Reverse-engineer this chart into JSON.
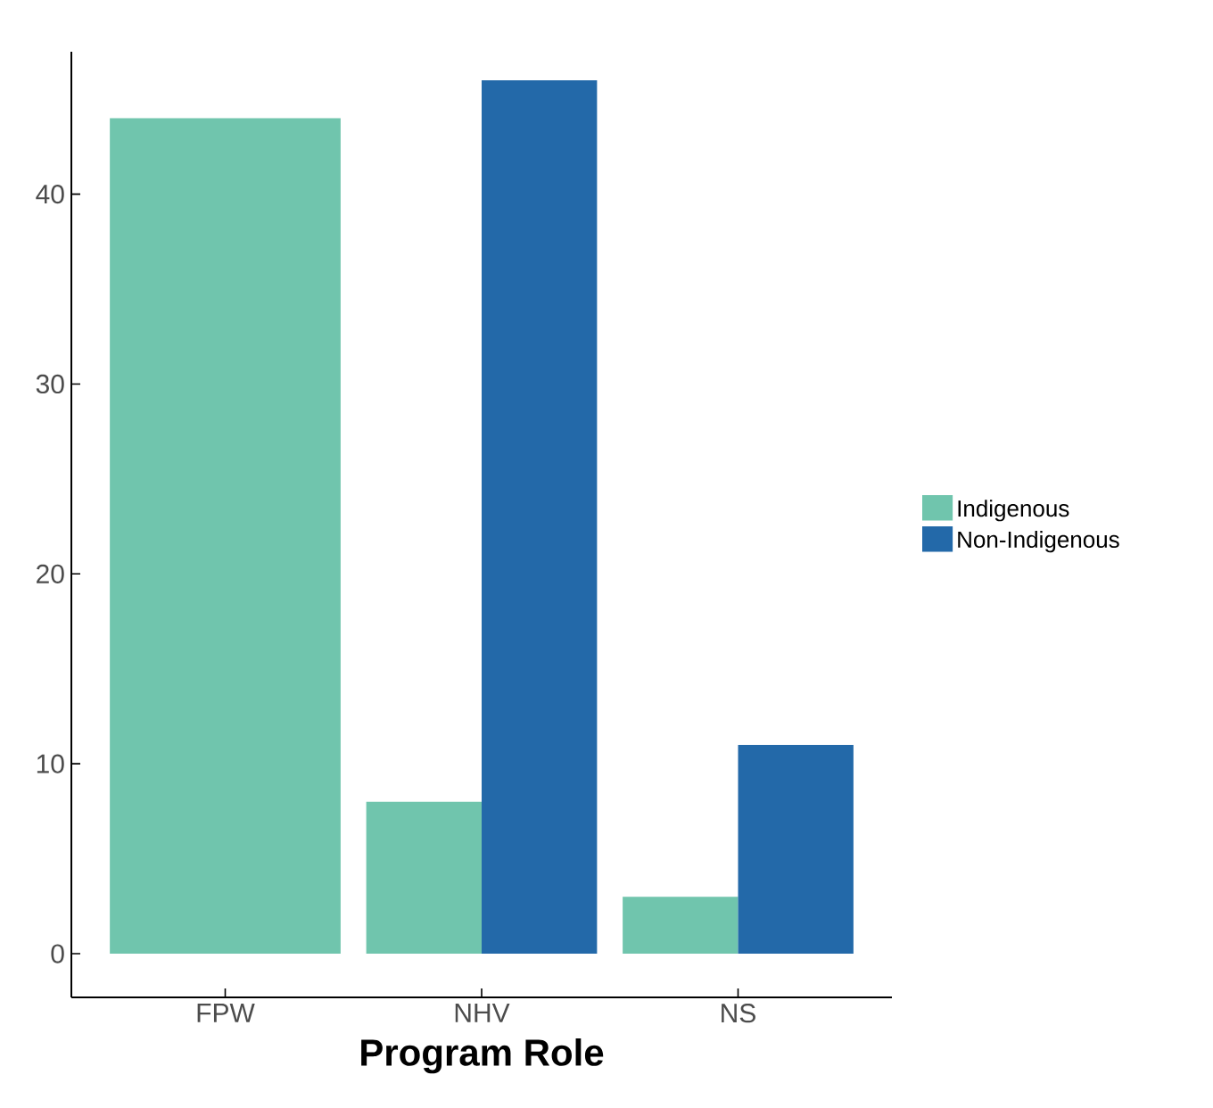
{
  "chart_data": {
    "type": "bar",
    "xlabel": "Program Role",
    "categories": [
      "FPW",
      "NHV",
      "NS"
    ],
    "series": [
      {
        "name": "Indigenous",
        "color": "#70c5ad",
        "values": [
          44,
          8,
          3
        ]
      },
      {
        "name": "Non-Indigenous",
        "color": "#2369a9",
        "values": [
          null,
          46,
          11
        ]
      }
    ],
    "ylim": [
      -2.3,
      47.5
    ],
    "yticks": [
      0,
      10,
      20,
      30,
      40
    ],
    "grid": false,
    "legend": "right"
  }
}
